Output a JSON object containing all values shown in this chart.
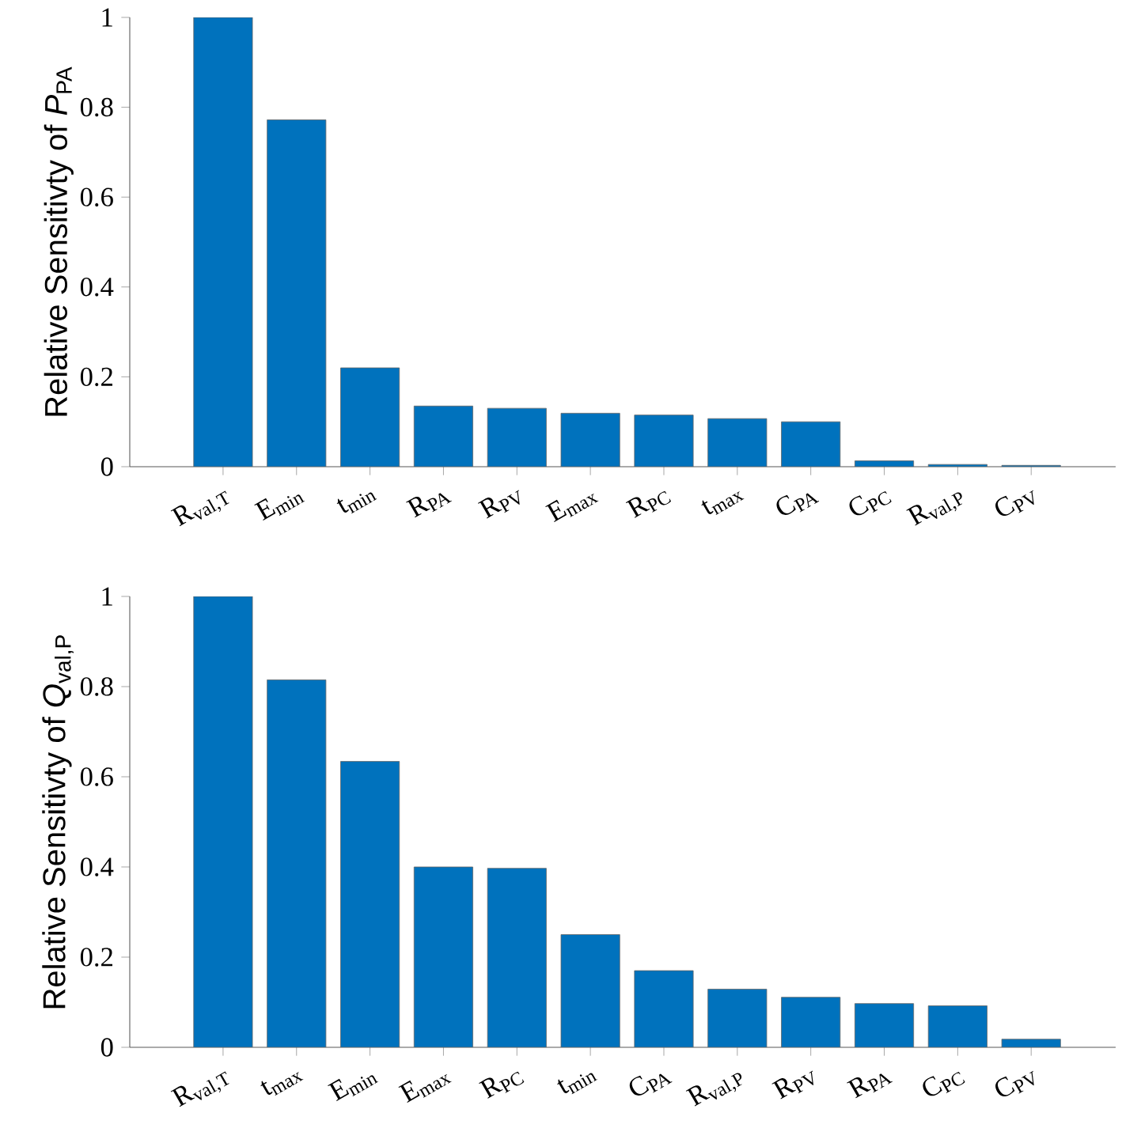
{
  "chart_data": [
    {
      "type": "bar",
      "ylabel": "Relative Sensitivty of *P*$_{PA}$",
      "categories": [
        "R$_{val,T}$",
        "E$_{min}$",
        "t$_{min}$",
        "R$_{PA}$",
        "R$_{PV}$",
        "E$_{max}$",
        "R$_{PC}$",
        "t$_{max}$",
        "C$_{PA}$",
        "C$_{PC}$",
        "R$_{val,P}$",
        "C$_{PV}$"
      ],
      "values": [
        1.0,
        0.772,
        0.22,
        0.135,
        0.13,
        0.119,
        0.115,
        0.107,
        0.1,
        0.013,
        0.005,
        0.003
      ],
      "color": "#0072bd",
      "ylim": [
        0,
        1
      ],
      "yticks": [
        0,
        0.2,
        0.4,
        0.6,
        0.8,
        1
      ]
    },
    {
      "type": "bar",
      "ylabel": "Relative Sensitivty of *Q*$_{val,P}$",
      "categories": [
        "R$_{val,T}$",
        "t$_{max}$",
        "E$_{min}$",
        "E$_{max}$",
        "R$_{PC}$",
        "t$_{min}$",
        "C$_{PA}$",
        "R$_{val,P}$",
        "R$_{PV}$",
        "R$_{PA}$",
        "C$_{PC}$",
        "C$_{PV}$"
      ],
      "values": [
        1.0,
        0.815,
        0.634,
        0.4,
        0.397,
        0.25,
        0.17,
        0.129,
        0.111,
        0.097,
        0.092,
        0.018
      ],
      "color": "#0072bd",
      "ylim": [
        0,
        1
      ],
      "yticks": [
        0,
        0.2,
        0.4,
        0.6,
        0.8,
        1
      ]
    }
  ]
}
